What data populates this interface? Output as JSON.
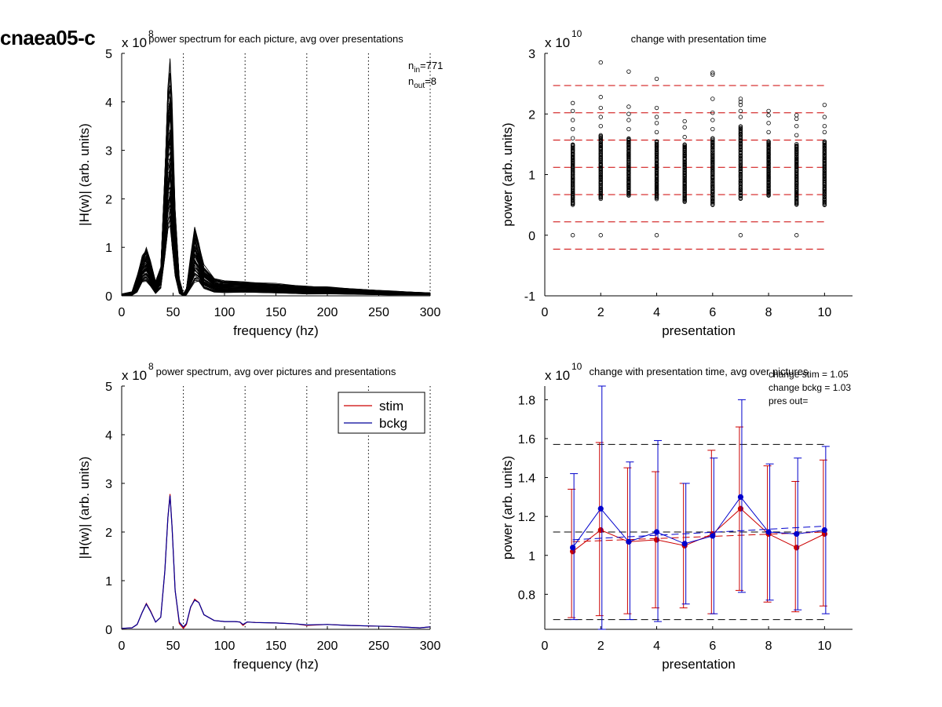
{
  "figure": {
    "label": "cnaea05-c"
  },
  "chart_data": [
    {
      "id": "p1",
      "type": "line",
      "title": "power spectrum for each picture, avg over presentations",
      "xlabel": "frequency (hz)",
      "ylabel": "|H(w)| (arb. units)",
      "xlim": [
        0,
        300
      ],
      "ylim": [
        0,
        5
      ],
      "xticks": [
        0,
        50,
        100,
        150,
        200,
        250,
        300
      ],
      "yticks": [
        0,
        1,
        2,
        3,
        4,
        5
      ],
      "exponent": "8",
      "exponent_base": "x 10",
      "vlines": [
        60,
        120,
        180,
        240,
        300
      ],
      "annotation": {
        "n_in_label": "n",
        "n_in_sub": "in",
        "n_in_value": "=771",
        "n_out_label": "n",
        "n_out_sub": "out",
        "n_out_value": "=8"
      },
      "series_count": 771,
      "series_color": "#000000",
      "envelope": {
        "x": [
          0,
          10,
          15,
          20,
          24,
          28,
          33,
          38,
          42,
          45,
          47,
          49,
          52,
          56,
          60,
          63,
          67,
          71,
          75,
          80,
          90,
          100,
          120,
          150,
          180,
          200,
          230,
          260,
          300
        ],
        "mean": [
          0.02,
          0.05,
          0.2,
          0.52,
          0.55,
          0.4,
          0.15,
          0.35,
          1.6,
          2.7,
          2.8,
          2.2,
          1.0,
          0.2,
          0.02,
          0.08,
          0.4,
          0.6,
          0.52,
          0.3,
          0.18,
          0.16,
          0.15,
          0.13,
          0.1,
          0.09,
          0.07,
          0.05,
          0.04
        ],
        "max": [
          0.04,
          0.08,
          0.4,
          0.8,
          0.95,
          0.7,
          0.3,
          0.6,
          2.6,
          4.3,
          4.7,
          3.8,
          1.8,
          0.35,
          0.04,
          0.15,
          0.8,
          1.38,
          1.05,
          0.6,
          0.35,
          0.3,
          0.28,
          0.25,
          0.2,
          0.18,
          0.14,
          0.1,
          0.06
        ],
        "min": [
          0.0,
          0.01,
          0.08,
          0.3,
          0.3,
          0.2,
          0.05,
          0.15,
          0.8,
          1.4,
          1.5,
          1.0,
          0.4,
          0.05,
          0.0,
          0.02,
          0.15,
          0.3,
          0.3,
          0.15,
          0.08,
          0.07,
          0.07,
          0.06,
          0.04,
          0.04,
          0.03,
          0.02,
          0.02
        ]
      }
    },
    {
      "id": "p2",
      "type": "scatter",
      "title": "change with presentation time",
      "xlabel": "presentation",
      "ylabel": "power (arb. units)",
      "xlim": [
        0,
        11
      ],
      "ylim": [
        -1,
        3
      ],
      "xticks": [
        0,
        2,
        4,
        6,
        8,
        10
      ],
      "yticks": [
        -1,
        0,
        1,
        2,
        3
      ],
      "exponent": "10",
      "exponent_base": "x 10",
      "hlines": [
        2.47,
        2.02,
        1.57,
        1.12,
        0.67,
        0.22,
        -0.23
      ],
      "hline_color": "#cc0000",
      "marker_color": "#000000",
      "columns": [
        {
          "x": 1,
          "low": 0.5,
          "high": 1.5,
          "outliers": [
            0.0,
            1.6,
            1.75,
            1.9,
            2.05,
            2.18
          ]
        },
        {
          "x": 2,
          "low": 0.6,
          "high": 1.65,
          "outliers": [
            0.0,
            1.8,
            1.95,
            2.1,
            2.28,
            2.85
          ]
        },
        {
          "x": 3,
          "low": 0.65,
          "high": 1.6,
          "outliers": [
            1.75,
            1.9,
            2.0,
            2.12,
            2.7
          ]
        },
        {
          "x": 4,
          "low": 0.6,
          "high": 1.55,
          "outliers": [
            0.0,
            1.7,
            1.85,
            1.95,
            2.1,
            2.58
          ]
        },
        {
          "x": 5,
          "low": 0.55,
          "high": 1.5,
          "outliers": [
            1.62,
            1.78,
            1.88
          ]
        },
        {
          "x": 6,
          "low": 0.5,
          "high": 1.6,
          "outliers": [
            1.75,
            1.9,
            2.02,
            2.25,
            2.65,
            2.68
          ]
        },
        {
          "x": 7,
          "low": 0.6,
          "high": 1.8,
          "outliers": [
            0.0,
            1.95,
            2.05,
            2.15,
            2.2,
            2.25
          ]
        },
        {
          "x": 8,
          "low": 0.65,
          "high": 1.55,
          "outliers": [
            1.7,
            1.85,
            1.98,
            2.05
          ]
        },
        {
          "x": 9,
          "low": 0.5,
          "high": 1.5,
          "outliers": [
            0.0,
            1.65,
            1.8,
            1.92,
            1.98
          ]
        },
        {
          "x": 10,
          "low": 0.5,
          "high": 1.55,
          "outliers": [
            1.7,
            1.8,
            1.95,
            2.15
          ]
        }
      ]
    },
    {
      "id": "p3",
      "type": "line",
      "title": "power spectrum, avg over pictures and presentations",
      "xlabel": "frequency (hz)",
      "ylabel": "|H(w)| (arb. units)",
      "xlim": [
        0,
        300
      ],
      "ylim": [
        0,
        5
      ],
      "xticks": [
        0,
        50,
        100,
        150,
        200,
        250,
        300
      ],
      "yticks": [
        0,
        1,
        2,
        3,
        4,
        5
      ],
      "exponent": "8",
      "exponent_base": "x 10",
      "vlines": [
        60,
        120,
        180,
        240,
        300
      ],
      "legend": {
        "position": "top-right"
      },
      "x": [
        0,
        10,
        15,
        20,
        24,
        28,
        33,
        38,
        42,
        45,
        47,
        49,
        52,
        56,
        60,
        63,
        67,
        71,
        75,
        80,
        90,
        100,
        110,
        115,
        118,
        122,
        130,
        150,
        170,
        180,
        200,
        220,
        240,
        260,
        280,
        290,
        300
      ],
      "series": [
        {
          "name": "stim",
          "color": "#cc0000",
          "values": [
            0.02,
            0.03,
            0.1,
            0.35,
            0.53,
            0.38,
            0.15,
            0.25,
            1.2,
            2.3,
            2.78,
            2.1,
            0.8,
            0.12,
            0.02,
            0.1,
            0.45,
            0.62,
            0.55,
            0.3,
            0.18,
            0.16,
            0.16,
            0.15,
            0.08,
            0.15,
            0.14,
            0.13,
            0.11,
            0.08,
            0.1,
            0.08,
            0.07,
            0.06,
            0.04,
            0.03,
            0.05
          ]
        },
        {
          "name": "bckg",
          "color": "#000099",
          "values": [
            0.02,
            0.03,
            0.1,
            0.35,
            0.52,
            0.37,
            0.15,
            0.25,
            1.2,
            2.3,
            2.75,
            2.1,
            0.8,
            0.15,
            0.05,
            0.12,
            0.46,
            0.6,
            0.55,
            0.3,
            0.18,
            0.16,
            0.16,
            0.15,
            0.1,
            0.15,
            0.14,
            0.13,
            0.11,
            0.09,
            0.1,
            0.08,
            0.07,
            0.06,
            0.04,
            0.03,
            0.05
          ]
        }
      ]
    },
    {
      "id": "p4",
      "type": "line",
      "title": "change with presentation time, avg over pictures",
      "xlabel": "presentation",
      "ylabel": "power (arb. units)",
      "xlim": [
        0,
        11
      ],
      "ylim": [
        0.62,
        1.87
      ],
      "xticks": [
        0,
        2,
        4,
        6,
        8,
        10
      ],
      "yticks": [
        0.8,
        1.0,
        1.2,
        1.4,
        1.6,
        1.8
      ],
      "ytick_labels": [
        "0.8",
        "1",
        "1.2",
        "1.4",
        "1.6",
        "1.8"
      ],
      "exponent": "10",
      "exponent_base": "x 10",
      "annotation": [
        "change stim = 1.05",
        "change bckg = 1.03",
        "pres out="
      ],
      "hlines": [
        1.57,
        1.12,
        0.67
      ],
      "hline_color": "#000000",
      "x": [
        1,
        2,
        3,
        4,
        5,
        6,
        7,
        8,
        9,
        10
      ],
      "series": [
        {
          "name": "stim",
          "color": "#cc0000",
          "values": [
            1.02,
            1.13,
            1.07,
            1.08,
            1.05,
            1.11,
            1.24,
            1.11,
            1.04,
            1.11
          ],
          "err_low": [
            0.68,
            0.69,
            0.7,
            0.73,
            0.73,
            0.7,
            0.82,
            0.76,
            0.71,
            0.74
          ],
          "err_high": [
            1.34,
            1.58,
            1.45,
            1.43,
            1.37,
            1.54,
            1.66,
            1.46,
            1.38,
            1.49
          ],
          "trend": [
            1.07,
            1.12
          ]
        },
        {
          "name": "bckg",
          "color": "#0000cc",
          "values": [
            1.04,
            1.24,
            1.07,
            1.12,
            1.06,
            1.1,
            1.3,
            1.12,
            1.11,
            1.13
          ],
          "err_low": [
            0.67,
            0.62,
            0.67,
            0.66,
            0.75,
            0.7,
            0.81,
            0.77,
            0.72,
            0.7
          ],
          "err_high": [
            1.42,
            1.87,
            1.48,
            1.59,
            1.37,
            1.5,
            1.8,
            1.47,
            1.5,
            1.56
          ],
          "trend": [
            1.08,
            1.15
          ]
        }
      ]
    }
  ]
}
